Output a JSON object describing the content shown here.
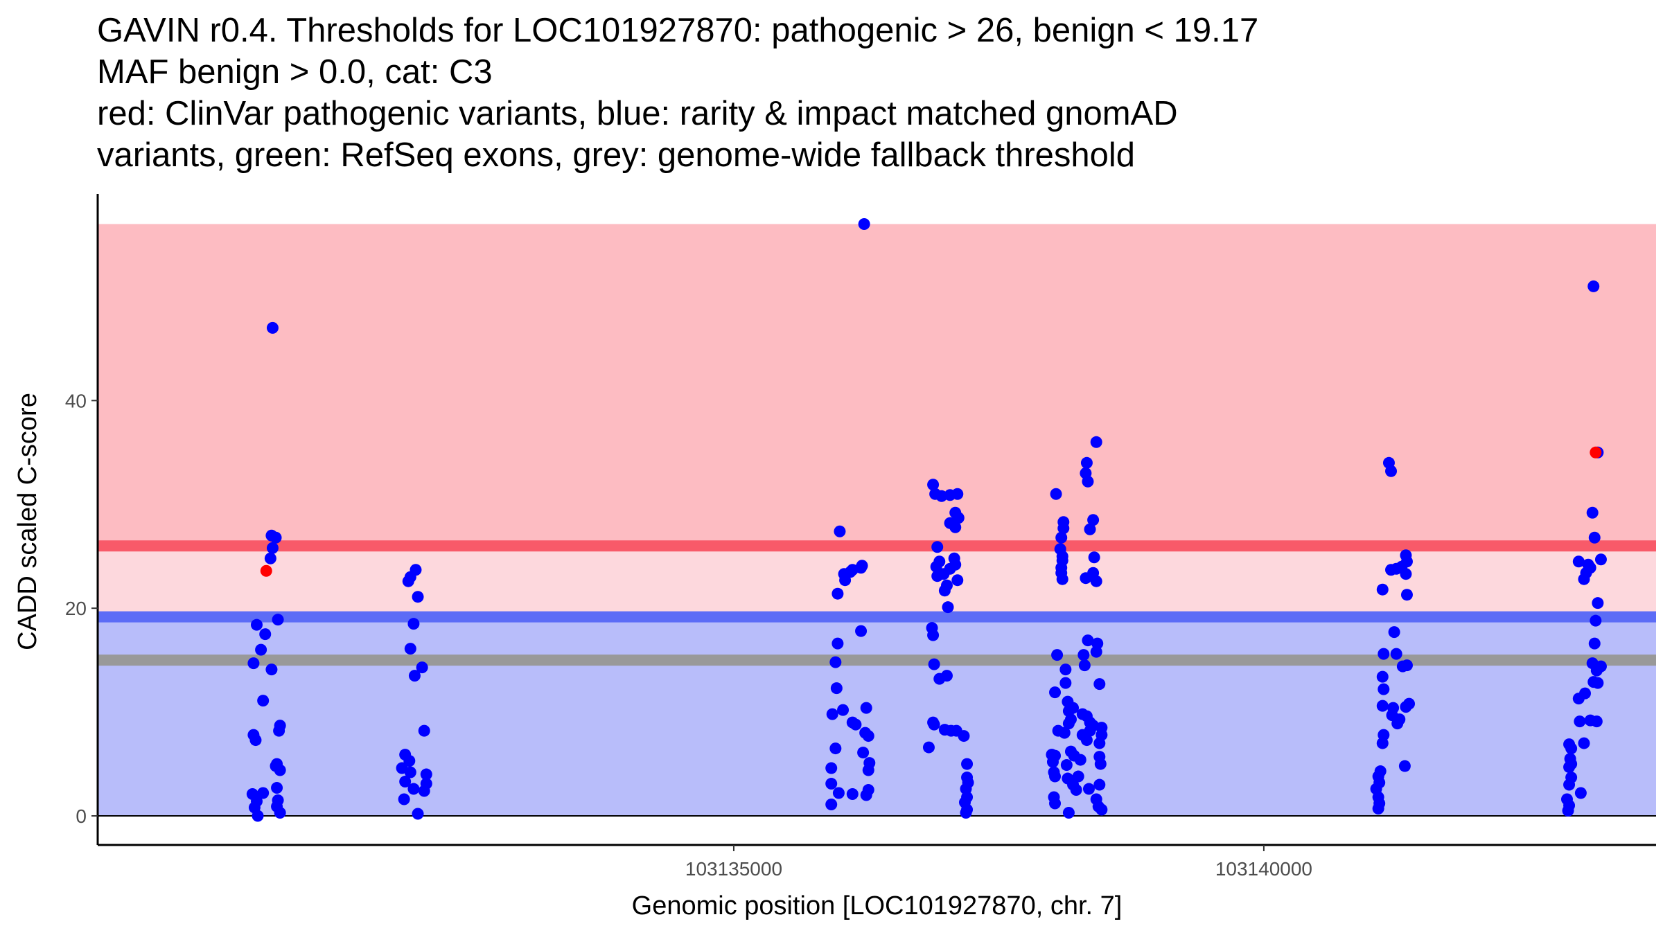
{
  "title_lines": [
    "GAVIN r0.4. Thresholds for LOC101927870: pathogenic > 26, benign < 19.17",
    "MAF benign > 0.0, cat: C3",
    "red: ClinVar pathogenic variants, blue: rarity & impact matched gnomAD",
    "variants, green: RefSeq exons, grey: genome-wide fallback threshold"
  ],
  "chart_data": {
    "type": "scatter",
    "title": "GAVIN r0.4. Thresholds for LOC101927870: pathogenic > 26, benign < 19.17",
    "xlabel": "Genomic position [LOC101927870, chr. 7]",
    "ylabel": "CADD scaled C-score",
    "xlim": [
      103129000,
      103143700
    ],
    "ylim": [
      -2.8,
      59.5
    ],
    "x_ticks": [
      103135000,
      103140000
    ],
    "x_tick_labels": [
      "103135000",
      "103140000"
    ],
    "y_ticks": [
      0,
      20,
      40
    ],
    "y_tick_labels": [
      "0",
      "20",
      "40"
    ],
    "colors": {
      "pathogenic": "#ff0000",
      "benign": "#0000ff",
      "pathogenic_band": "#fdbcc2",
      "middle_band": "#fdd8dd",
      "benign_band": "#b8bdfa",
      "pathogenic_line": "#f85a69",
      "benign_line": "#5c6cf6",
      "fallback_line": "#999999"
    },
    "bands": [
      {
        "name": "pathogenic-zone",
        "y0": 26,
        "y1": 57,
        "color": "#fdbcc2"
      },
      {
        "name": "intermediate-zone",
        "y0": 19.17,
        "y1": 26,
        "color": "#fdd8dd"
      },
      {
        "name": "benign-zone",
        "y0": 0,
        "y1": 19.17,
        "color": "#b8bdfa"
      }
    ],
    "threshold_lines": [
      {
        "name": "pathogenic-threshold-line",
        "y": 26,
        "color": "#f85a69"
      },
      {
        "name": "benign-threshold-line",
        "y": 19.17,
        "color": "#5c6cf6"
      },
      {
        "name": "fallback-threshold-line",
        "y": 15,
        "color": "#999999"
      }
    ],
    "series": [
      {
        "name": "ClinVar pathogenic",
        "color": "#ff0000",
        "points": [
          [
            103130590,
            23.6
          ],
          [
            103143130,
            35.0
          ]
        ]
      },
      {
        "name": "gnomAD rarity & impact matched",
        "color": "#0000ff",
        "points": [
          [
            103130650,
            47.0
          ],
          [
            103130640,
            27.0
          ],
          [
            103130680,
            26.8
          ],
          [
            103130650,
            25.8
          ],
          [
            103130630,
            24.8
          ],
          [
            103130500,
            18.4
          ],
          [
            103130580,
            17.5
          ],
          [
            103130540,
            16.0
          ],
          [
            103130470,
            14.7
          ],
          [
            103130640,
            14.1
          ],
          [
            103130700,
            18.9
          ],
          [
            103130560,
            11.1
          ],
          [
            103130470,
            7.8
          ],
          [
            103130490,
            7.3
          ],
          [
            103130720,
            8.7
          ],
          [
            103130710,
            8.2
          ],
          [
            103130690,
            5.0
          ],
          [
            103130720,
            4.4
          ],
          [
            103130680,
            4.8
          ],
          [
            103130690,
            2.7
          ],
          [
            103130460,
            2.1
          ],
          [
            103130500,
            1.4
          ],
          [
            103130560,
            2.2
          ],
          [
            103130700,
            1.5
          ],
          [
            103130480,
            0.8
          ],
          [
            103130510,
            0.0
          ],
          [
            103130720,
            0.3
          ],
          [
            103130690,
            0.9
          ],
          [
            103131950,
            23.0
          ],
          [
            103132000,
            23.7
          ],
          [
            103131930,
            22.6
          ],
          [
            103132020,
            21.1
          ],
          [
            103131980,
            18.5
          ],
          [
            103131950,
            16.1
          ],
          [
            103132060,
            14.3
          ],
          [
            103131990,
            13.5
          ],
          [
            103132080,
            8.2
          ],
          [
            103131900,
            5.9
          ],
          [
            103131940,
            5.3
          ],
          [
            103131870,
            4.6
          ],
          [
            103131950,
            4.2
          ],
          [
            103132100,
            4.0
          ],
          [
            103131900,
            3.3
          ],
          [
            103131980,
            2.6
          ],
          [
            103132100,
            3.1
          ],
          [
            103132080,
            2.4
          ],
          [
            103131890,
            1.6
          ],
          [
            103132020,
            0.2
          ],
          [
            103136230,
            57.0
          ],
          [
            103136000,
            27.4
          ],
          [
            103135980,
            21.4
          ],
          [
            103136050,
            22.7
          ],
          [
            103136040,
            23.3
          ],
          [
            103136100,
            23.5
          ],
          [
            103136210,
            24.1
          ],
          [
            103136200,
            23.9
          ],
          [
            103136120,
            23.7
          ],
          [
            103136200,
            17.8
          ],
          [
            103135980,
            16.6
          ],
          [
            103135960,
            14.8
          ],
          [
            103135970,
            12.3
          ],
          [
            103135930,
            9.8
          ],
          [
            103136030,
            10.2
          ],
          [
            103136250,
            10.4
          ],
          [
            103136120,
            9.0
          ],
          [
            103136150,
            8.8
          ],
          [
            103136270,
            7.7
          ],
          [
            103136240,
            8.0
          ],
          [
            103135960,
            6.5
          ],
          [
            103136220,
            6.1
          ],
          [
            103136280,
            5.1
          ],
          [
            103135920,
            4.6
          ],
          [
            103136270,
            4.4
          ],
          [
            103135920,
            3.1
          ],
          [
            103135990,
            2.2
          ],
          [
            103136120,
            2.1
          ],
          [
            103136250,
            2.0
          ],
          [
            103136270,
            2.5
          ],
          [
            103135920,
            1.1
          ],
          [
            103136880,
            31.9
          ],
          [
            103136900,
            31.0
          ],
          [
            103137040,
            30.9
          ],
          [
            103136960,
            30.8
          ],
          [
            103137110,
            31.0
          ],
          [
            103137090,
            29.2
          ],
          [
            103137120,
            28.7
          ],
          [
            103137040,
            28.2
          ],
          [
            103137090,
            27.8
          ],
          [
            103136920,
            25.9
          ],
          [
            103137080,
            24.8
          ],
          [
            103136940,
            24.5
          ],
          [
            103137090,
            24.2
          ],
          [
            103136910,
            24.0
          ],
          [
            103137040,
            23.8
          ],
          [
            103136980,
            23.3
          ],
          [
            103136920,
            23.1
          ],
          [
            103137110,
            22.7
          ],
          [
            103137010,
            22.2
          ],
          [
            103136990,
            21.7
          ],
          [
            103137020,
            20.1
          ],
          [
            103136870,
            18.1
          ],
          [
            103136880,
            17.4
          ],
          [
            103136890,
            14.6
          ],
          [
            103137010,
            13.5
          ],
          [
            103136940,
            13.2
          ],
          [
            103136880,
            9.0
          ],
          [
            103136890,
            8.8
          ],
          [
            103136990,
            8.3
          ],
          [
            103137050,
            8.2
          ],
          [
            103137100,
            8.2
          ],
          [
            103137170,
            7.7
          ],
          [
            103136840,
            6.6
          ],
          [
            103137200,
            5.0
          ],
          [
            103137200,
            3.7
          ],
          [
            103137210,
            3.2
          ],
          [
            103137190,
            2.6
          ],
          [
            103137200,
            1.8
          ],
          [
            103137180,
            1.3
          ],
          [
            103137200,
            0.6
          ],
          [
            103137190,
            0.3
          ],
          [
            103138040,
            31.0
          ],
          [
            103138110,
            28.3
          ],
          [
            103138110,
            27.7
          ],
          [
            103138090,
            26.8
          ],
          [
            103138080,
            25.7
          ],
          [
            103138100,
            25.0
          ],
          [
            103138100,
            24.6
          ],
          [
            103138090,
            23.9
          ],
          [
            103138090,
            23.4
          ],
          [
            103138100,
            22.8
          ],
          [
            103138420,
            36.0
          ],
          [
            103138330,
            34.0
          ],
          [
            103138320,
            33.0
          ],
          [
            103138340,
            32.2
          ],
          [
            103138390,
            28.5
          ],
          [
            103138360,
            27.6
          ],
          [
            103138400,
            24.9
          ],
          [
            103138390,
            23.4
          ],
          [
            103138420,
            22.6
          ],
          [
            103138320,
            22.9
          ],
          [
            103138050,
            15.5
          ],
          [
            103138130,
            14.1
          ],
          [
            103138130,
            12.8
          ],
          [
            103138030,
            11.9
          ],
          [
            103138150,
            11.0
          ],
          [
            103138300,
            15.5
          ],
          [
            103138310,
            14.5
          ],
          [
            103138340,
            16.9
          ],
          [
            103138430,
            16.6
          ],
          [
            103138420,
            15.8
          ],
          [
            103138450,
            12.7
          ],
          [
            103138160,
            10.1
          ],
          [
            103138200,
            10.4
          ],
          [
            103138180,
            9.3
          ],
          [
            103138160,
            8.9
          ],
          [
            103138290,
            9.8
          ],
          [
            103138330,
            9.6
          ],
          [
            103138360,
            9.0
          ],
          [
            103138390,
            8.7
          ],
          [
            103138470,
            8.5
          ],
          [
            103138470,
            7.8
          ],
          [
            103138360,
            8.2
          ],
          [
            103138290,
            7.8
          ],
          [
            103138330,
            7.3
          ],
          [
            103138450,
            7.0
          ],
          [
            103138060,
            8.2
          ],
          [
            103138120,
            8.0
          ],
          [
            103138000,
            5.9
          ],
          [
            103138010,
            5.2
          ],
          [
            103138030,
            5.8
          ],
          [
            103138180,
            6.2
          ],
          [
            103138210,
            5.8
          ],
          [
            103138270,
            5.4
          ],
          [
            103138450,
            5.7
          ],
          [
            103138460,
            5.0
          ],
          [
            103138020,
            4.2
          ],
          [
            103138030,
            3.8
          ],
          [
            103138140,
            4.9
          ],
          [
            103138150,
            3.6
          ],
          [
            103138200,
            3.0
          ],
          [
            103138230,
            2.5
          ],
          [
            103138250,
            3.8
          ],
          [
            103138350,
            2.6
          ],
          [
            103138450,
            3.0
          ],
          [
            103138020,
            1.8
          ],
          [
            103138030,
            1.2
          ],
          [
            103138160,
            0.3
          ],
          [
            103138420,
            1.6
          ],
          [
            103138440,
            0.9
          ],
          [
            103138470,
            0.6
          ],
          [
            103141180,
            34.0
          ],
          [
            103141200,
            33.2
          ],
          [
            103141120,
            21.8
          ],
          [
            103141200,
            23.7
          ],
          [
            103141250,
            23.8
          ],
          [
            103141340,
            25.1
          ],
          [
            103141350,
            24.5
          ],
          [
            103141300,
            24.0
          ],
          [
            103141340,
            23.3
          ],
          [
            103141350,
            21.3
          ],
          [
            103141230,
            17.7
          ],
          [
            103141130,
            15.6
          ],
          [
            103141250,
            15.6
          ],
          [
            103141310,
            14.4
          ],
          [
            103141350,
            14.5
          ],
          [
            103141120,
            13.4
          ],
          [
            103141130,
            12.2
          ],
          [
            103141120,
            10.6
          ],
          [
            103141220,
            10.4
          ],
          [
            103141370,
            10.8
          ],
          [
            103141340,
            10.5
          ],
          [
            103141210,
            9.7
          ],
          [
            103141280,
            9.3
          ],
          [
            103141260,
            8.9
          ],
          [
            103141130,
            7.8
          ],
          [
            103141120,
            7.0
          ],
          [
            103141330,
            4.8
          ],
          [
            103141100,
            4.3
          ],
          [
            103141080,
            3.8
          ],
          [
            103141090,
            3.2
          ],
          [
            103141060,
            2.6
          ],
          [
            103141080,
            1.8
          ],
          [
            103141090,
            1.2
          ],
          [
            103141080,
            0.7
          ],
          [
            103143110,
            51.0
          ],
          [
            103143150,
            35.0
          ],
          [
            103143100,
            29.2
          ],
          [
            103143120,
            26.8
          ],
          [
            103142970,
            24.5
          ],
          [
            103143060,
            24.2
          ],
          [
            103143080,
            23.9
          ],
          [
            103143180,
            24.7
          ],
          [
            103143040,
            23.4
          ],
          [
            103143020,
            22.8
          ],
          [
            103143150,
            20.5
          ],
          [
            103143130,
            18.8
          ],
          [
            103143120,
            16.6
          ],
          [
            103143100,
            14.7
          ],
          [
            103143180,
            14.4
          ],
          [
            103143140,
            14.0
          ],
          [
            103143110,
            12.9
          ],
          [
            103143150,
            12.8
          ],
          [
            103143030,
            11.8
          ],
          [
            103142970,
            11.3
          ],
          [
            103142980,
            9.1
          ],
          [
            103143080,
            9.2
          ],
          [
            103143140,
            9.1
          ],
          [
            103143020,
            7.0
          ],
          [
            103142880,
            6.9
          ],
          [
            103142900,
            6.5
          ],
          [
            103142890,
            5.5
          ],
          [
            103142900,
            5.0
          ],
          [
            103142880,
            4.7
          ],
          [
            103142900,
            3.7
          ],
          [
            103142880,
            3.0
          ],
          [
            103142990,
            2.2
          ],
          [
            103142860,
            1.6
          ],
          [
            103142880,
            1.0
          ],
          [
            103142870,
            0.5
          ]
        ]
      }
    ]
  }
}
